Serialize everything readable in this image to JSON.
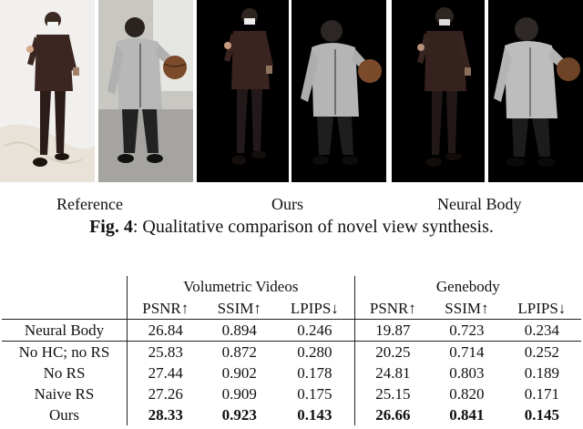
{
  "figure": {
    "panel_labels": [
      "Reference",
      "Ours",
      "Neural Body"
    ],
    "caption_prefix": "Fig. 4",
    "caption_text": ": Qualitative comparison of novel view synthesis."
  },
  "table": {
    "groups": [
      "Volumetric Videos",
      "Genebody"
    ],
    "metrics": [
      "PSNR↑",
      "SSIM↑",
      "LPIPS↓",
      "PSNR↑",
      "SSIM↑",
      "LPIPS↓"
    ],
    "rows": [
      {
        "method": "Neural Body",
        "values": [
          "26.84",
          "0.894",
          "0.246",
          "19.87",
          "0.723",
          "0.234"
        ]
      },
      {
        "method": "No HC; no RS",
        "values": [
          "25.83",
          "0.872",
          "0.280",
          "20.25",
          "0.714",
          "0.252"
        ]
      },
      {
        "method": "No RS",
        "values": [
          "27.44",
          "0.902",
          "0.178",
          "24.81",
          "0.803",
          "0.189"
        ]
      },
      {
        "method": "Naive RS",
        "values": [
          "27.26",
          "0.909",
          "0.175",
          "25.15",
          "0.820",
          "0.171"
        ]
      },
      {
        "method": "Ours",
        "values": [
          "28.33",
          "0.923",
          "0.143",
          "26.66",
          "0.841",
          "0.145"
        ]
      }
    ]
  }
}
